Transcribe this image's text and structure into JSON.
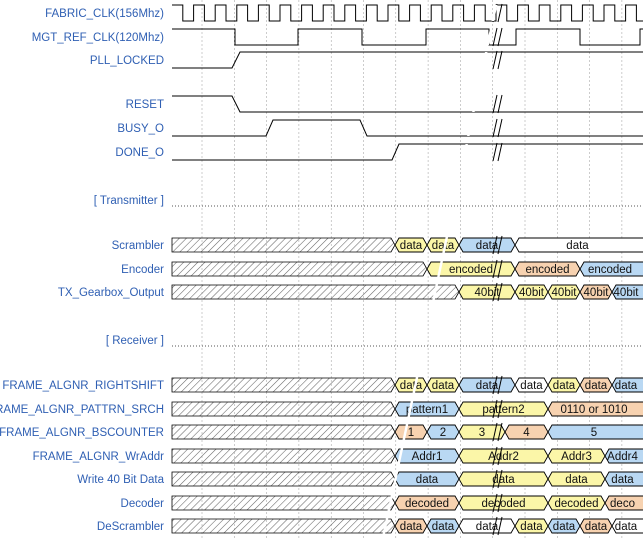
{
  "colors": {
    "label": "#2f5fb3",
    "line": "#000000",
    "grid": "#999999",
    "data_blue": "#b9d8f3",
    "data_yellow": "#fbf6a8",
    "data_orange": "#f7d2b0",
    "data_white": "#ffffff",
    "hatch": "#666666"
  },
  "signals": [
    {
      "name": "FABRIC_CLK(156Mhz)",
      "kind": "clock"
    },
    {
      "name": "MGT_REF_CLK(120Mhz)",
      "kind": "clock"
    },
    {
      "name": "PLL_LOCKED",
      "kind": "level"
    },
    {
      "name": "RESET",
      "kind": "level"
    },
    {
      "name": "BUSY_O",
      "kind": "level"
    },
    {
      "name": "DONE_O",
      "kind": "level"
    },
    {
      "name": "[ Transmitter ]",
      "kind": "section"
    },
    {
      "name": "Scrambler",
      "kind": "bus",
      "segments": [
        {
          "text": "data",
          "color": "yellow"
        },
        {
          "text": "data",
          "color": "yellow"
        },
        {
          "text": "data",
          "color": "blue"
        },
        {
          "text": "data",
          "color": "white"
        }
      ]
    },
    {
      "name": "Encoder",
      "kind": "bus",
      "segments": [
        {
          "text": "encoded",
          "color": "yellow"
        },
        {
          "text": "encoded",
          "color": "orange"
        },
        {
          "text": "encoded",
          "color": "blue"
        }
      ]
    },
    {
      "name": "TX_Gearbox_Output",
      "kind": "bus",
      "segments": [
        {
          "text": "40bit",
          "color": "yellow"
        },
        {
          "text": "40bit",
          "color": "yellow"
        },
        {
          "text": "40bit",
          "color": "yellow"
        },
        {
          "text": "40bit",
          "color": "orange"
        },
        {
          "text": "40bit",
          "color": "blue"
        }
      ]
    },
    {
      "name": "[ Receiver ]",
      "kind": "section"
    },
    {
      "name": "FRAME_ALGNR_RIGHTSHIFT",
      "kind": "bus",
      "segments": [
        {
          "text": "data",
          "color": "yellow"
        },
        {
          "text": "data",
          "color": "yellow"
        },
        {
          "text": "data",
          "color": "blue"
        },
        {
          "text": "data",
          "color": "white"
        },
        {
          "text": "data",
          "color": "yellow"
        },
        {
          "text": "data",
          "color": "orange"
        },
        {
          "text": "data",
          "color": "blue"
        }
      ]
    },
    {
      "name": "FRAME_ALGNR_PATTRN_SRCH",
      "kind": "bus",
      "segments": [
        {
          "text": "pattern1",
          "color": "blue"
        },
        {
          "text": "pattern2",
          "color": "yellow"
        },
        {
          "text": "0110 or 1010",
          "color": "orange"
        }
      ]
    },
    {
      "name": "FRAME_ALGNR_BSCOUNTER",
      "kind": "bus",
      "segments": [
        {
          "text": "1",
          "color": "orange"
        },
        {
          "text": "2",
          "color": "blue"
        },
        {
          "text": "3",
          "color": "yellow"
        },
        {
          "text": "4",
          "color": "orange"
        },
        {
          "text": "5",
          "color": "blue"
        }
      ]
    },
    {
      "name": "FRAME_ALGNR_WrAddr",
      "kind": "bus",
      "segments": [
        {
          "text": "Addr1",
          "color": "blue"
        },
        {
          "text": "Addr2",
          "color": "yellow"
        },
        {
          "text": "Addr3",
          "color": "yellow"
        },
        {
          "text": "Addr4",
          "color": "blue"
        }
      ]
    },
    {
      "name": "Write 40 Bit Data",
      "kind": "bus",
      "segments": [
        {
          "text": "data",
          "color": "blue"
        },
        {
          "text": "data",
          "color": "yellow"
        },
        {
          "text": "data",
          "color": "yellow"
        },
        {
          "text": "data",
          "color": "blue"
        }
      ]
    },
    {
      "name": "Decoder",
      "kind": "bus",
      "segments": [
        {
          "text": "decoded",
          "color": "orange"
        },
        {
          "text": "decoded",
          "color": "yellow"
        },
        {
          "text": "decoded",
          "color": "yellow"
        },
        {
          "text": "deco",
          "color": "orange"
        }
      ]
    },
    {
      "name": "DeScrambler",
      "kind": "bus",
      "segments": [
        {
          "text": "data",
          "color": "orange"
        },
        {
          "text": "data",
          "color": "blue"
        },
        {
          "text": "data",
          "color": "white"
        },
        {
          "text": "data",
          "color": "yellow"
        },
        {
          "text": "data",
          "color": "blue"
        },
        {
          "text": "data",
          "color": "orange"
        },
        {
          "text": "data",
          "color": "white"
        }
      ]
    }
  ]
}
